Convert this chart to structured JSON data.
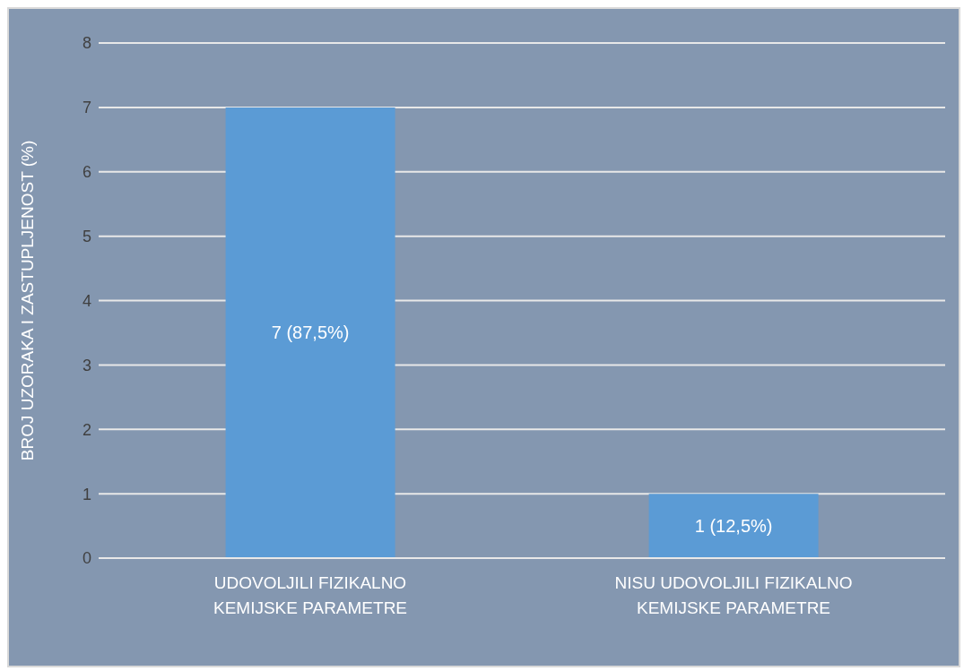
{
  "chart_data": {
    "type": "bar",
    "ylabel": "BROJ UZORAKA I ZASTUPLJENOST (%)",
    "categories": [
      "UDOVOLJILI FIZIKALNO KEMIJSKE PARAMETRE",
      "NISU UDOVOLJILI FIZIKALNO KEMIJSKE PARAMETRE"
    ],
    "values": [
      7,
      1
    ],
    "color": "#5b9bd5",
    "value_labels": [
      "7 (87,5%)",
      "1 (12,5%)"
    ],
    "ylim": [
      0,
      8
    ],
    "yticks": [
      0,
      1,
      2,
      3,
      4,
      5,
      6,
      7,
      8
    ],
    "grid": "y"
  }
}
